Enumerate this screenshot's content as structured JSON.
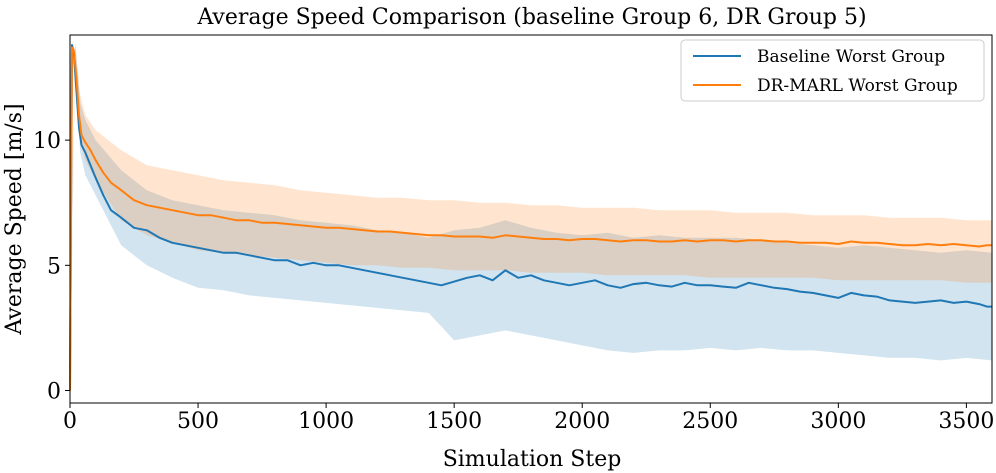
{
  "chart_data": {
    "type": "line",
    "title": "Average Speed Comparison (baseline Group 6, DR Group 5)",
    "xlabel": "Simulation Step",
    "ylabel": "Average Speed [m/s]",
    "xlim": [
      0,
      3600
    ],
    "ylim": [
      -0.5,
      14.2
    ],
    "xticks": [
      0,
      500,
      1000,
      1500,
      2000,
      2500,
      3000,
      3500
    ],
    "xtick_labels": [
      "0",
      "500",
      "1000",
      "1500",
      "2000",
      "2500",
      "3000",
      "3500"
    ],
    "yticks": [
      0,
      5,
      10
    ],
    "ytick_labels": [
      "0",
      "5",
      "10"
    ],
    "grid": false,
    "legend_position": "top-right",
    "series": [
      {
        "name": "Baseline Worst Group",
        "color": "#1f77b4",
        "x": [
          0,
          8,
          15,
          25,
          35,
          45,
          60,
          80,
          100,
          130,
          160,
          200,
          250,
          300,
          350,
          400,
          450,
          500,
          550,
          600,
          650,
          700,
          750,
          800,
          850,
          900,
          950,
          1000,
          1050,
          1100,
          1150,
          1200,
          1250,
          1300,
          1350,
          1400,
          1450,
          1500,
          1550,
          1600,
          1650,
          1700,
          1750,
          1800,
          1850,
          1900,
          1950,
          2000,
          2050,
          2100,
          2150,
          2200,
          2250,
          2300,
          2350,
          2400,
          2450,
          2500,
          2550,
          2600,
          2650,
          2700,
          2750,
          2800,
          2850,
          2900,
          2950,
          3000,
          3050,
          3100,
          3150,
          3200,
          3250,
          3300,
          3350,
          3400,
          3450,
          3500,
          3550,
          3580,
          3600
        ],
        "values": [
          0,
          13.8,
          13.5,
          12.0,
          10.5,
          9.8,
          9.5,
          9.0,
          8.5,
          7.8,
          7.2,
          6.9,
          6.5,
          6.4,
          6.1,
          5.9,
          5.8,
          5.7,
          5.6,
          5.5,
          5.5,
          5.4,
          5.3,
          5.2,
          5.2,
          5.0,
          5.1,
          5.0,
          5.0,
          4.9,
          4.8,
          4.7,
          4.6,
          4.5,
          4.4,
          4.3,
          4.2,
          4.35,
          4.5,
          4.6,
          4.4,
          4.8,
          4.5,
          4.6,
          4.4,
          4.3,
          4.2,
          4.3,
          4.4,
          4.2,
          4.1,
          4.25,
          4.3,
          4.2,
          4.15,
          4.3,
          4.2,
          4.2,
          4.15,
          4.1,
          4.3,
          4.2,
          4.1,
          4.05,
          3.95,
          3.9,
          3.8,
          3.7,
          3.9,
          3.8,
          3.75,
          3.6,
          3.55,
          3.5,
          3.55,
          3.6,
          3.5,
          3.55,
          3.45,
          3.35,
          3.35
        ]
      },
      {
        "name": "DR-MARL Worst Group",
        "color": "#ff7f0e",
        "x": [
          0,
          8,
          15,
          25,
          35,
          45,
          60,
          80,
          100,
          130,
          160,
          200,
          250,
          300,
          350,
          400,
          450,
          500,
          550,
          600,
          650,
          700,
          750,
          800,
          850,
          900,
          950,
          1000,
          1050,
          1100,
          1150,
          1200,
          1250,
          1300,
          1350,
          1400,
          1450,
          1500,
          1550,
          1600,
          1650,
          1700,
          1750,
          1800,
          1850,
          1900,
          1950,
          2000,
          2050,
          2100,
          2150,
          2200,
          2250,
          2300,
          2350,
          2400,
          2450,
          2500,
          2550,
          2600,
          2650,
          2700,
          2750,
          2800,
          2850,
          2900,
          2950,
          3000,
          3050,
          3100,
          3150,
          3200,
          3250,
          3300,
          3350,
          3400,
          3450,
          3500,
          3550,
          3580,
          3600
        ],
        "values": [
          0,
          13.7,
          13.6,
          12.5,
          11.0,
          10.2,
          9.9,
          9.6,
          9.2,
          8.7,
          8.3,
          8.0,
          7.6,
          7.4,
          7.3,
          7.2,
          7.1,
          7.0,
          7.0,
          6.9,
          6.8,
          6.8,
          6.7,
          6.7,
          6.65,
          6.6,
          6.55,
          6.5,
          6.5,
          6.45,
          6.4,
          6.35,
          6.35,
          6.3,
          6.25,
          6.2,
          6.2,
          6.15,
          6.15,
          6.15,
          6.1,
          6.2,
          6.15,
          6.1,
          6.05,
          6.05,
          6.0,
          6.05,
          6.05,
          6.0,
          5.95,
          6.0,
          6.0,
          5.95,
          5.95,
          6.0,
          5.95,
          6.0,
          6.0,
          5.95,
          6.0,
          6.0,
          5.95,
          5.95,
          5.9,
          5.9,
          5.9,
          5.85,
          5.95,
          5.9,
          5.9,
          5.85,
          5.8,
          5.8,
          5.85,
          5.8,
          5.85,
          5.8,
          5.75,
          5.8,
          5.8
        ]
      }
    ],
    "bands": [
      {
        "series": "Baseline Worst Group",
        "color": "#1f77b4",
        "x": [
          0,
          20,
          40,
          60,
          100,
          200,
          300,
          400,
          500,
          600,
          700,
          800,
          900,
          1000,
          1100,
          1200,
          1300,
          1400,
          1500,
          1600,
          1700,
          1800,
          1900,
          2000,
          2100,
          2200,
          2300,
          2400,
          2500,
          2600,
          2700,
          2800,
          2900,
          3000,
          3100,
          3200,
          3300,
          3400,
          3500,
          3600
        ],
        "upper": [
          0,
          13.9,
          11.5,
          10.8,
          10.0,
          8.8,
          8.0,
          7.6,
          7.4,
          7.2,
          7.1,
          7.0,
          6.8,
          6.7,
          6.6,
          6.4,
          6.3,
          6.1,
          6.4,
          6.5,
          6.8,
          6.5,
          6.3,
          6.2,
          6.3,
          6.1,
          6.2,
          6.1,
          6.1,
          6.1,
          6.0,
          5.9,
          5.8,
          5.7,
          5.8,
          5.7,
          5.6,
          5.5,
          5.6,
          5.5
        ],
        "lower": [
          0,
          13.2,
          9.5,
          8.6,
          7.8,
          5.8,
          5.0,
          4.5,
          4.1,
          4.0,
          3.8,
          3.7,
          3.6,
          3.5,
          3.4,
          3.3,
          3.2,
          3.1,
          2.0,
          2.2,
          2.4,
          2.2,
          2.0,
          1.8,
          1.6,
          1.5,
          1.6,
          1.6,
          1.7,
          1.6,
          1.7,
          1.6,
          1.6,
          1.5,
          1.4,
          1.3,
          1.3,
          1.2,
          1.3,
          1.2
        ]
      },
      {
        "series": "DR-MARL Worst Group",
        "color": "#ff7f0e",
        "x": [
          0,
          20,
          40,
          60,
          100,
          200,
          300,
          400,
          500,
          600,
          700,
          800,
          900,
          1000,
          1100,
          1200,
          1300,
          1400,
          1500,
          1600,
          1700,
          1800,
          1900,
          2000,
          2100,
          2200,
          2300,
          2400,
          2500,
          2600,
          2700,
          2800,
          2900,
          3000,
          3100,
          3200,
          3300,
          3400,
          3500,
          3600
        ],
        "upper": [
          0,
          13.9,
          11.8,
          11.0,
          10.4,
          9.6,
          9.0,
          8.8,
          8.6,
          8.4,
          8.3,
          8.2,
          8.0,
          7.9,
          7.8,
          7.7,
          7.7,
          7.6,
          7.6,
          7.5,
          7.5,
          7.4,
          7.4,
          7.3,
          7.3,
          7.3,
          7.2,
          7.2,
          7.2,
          7.1,
          7.1,
          7.1,
          7.0,
          7.0,
          7.0,
          6.9,
          6.9,
          6.9,
          6.8,
          6.8
        ],
        "lower": [
          0,
          13.3,
          10.0,
          9.2,
          8.4,
          6.8,
          6.2,
          5.9,
          5.6,
          5.5,
          5.4,
          5.3,
          5.2,
          5.1,
          5.0,
          5.0,
          4.9,
          4.9,
          4.8,
          4.8,
          4.8,
          4.7,
          4.7,
          4.7,
          4.6,
          4.6,
          4.6,
          4.6,
          4.5,
          4.5,
          4.5,
          4.5,
          4.5,
          4.4,
          4.4,
          4.4,
          4.4,
          4.4,
          4.3,
          4.3
        ]
      }
    ]
  }
}
